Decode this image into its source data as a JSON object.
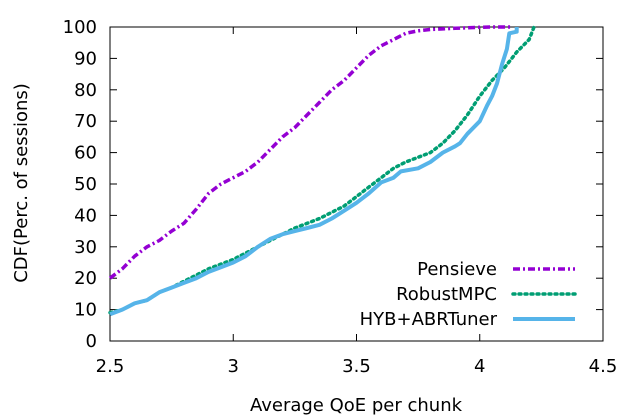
{
  "chart_data": {
    "type": "line",
    "title": "",
    "xlabel": "Average QoE per chunk",
    "ylabel": "CDF(Perc. of sessions)",
    "xlim": [
      2.5,
      4.5
    ],
    "ylim": [
      0,
      100
    ],
    "xticks": [
      2.5,
      3,
      3.5,
      4,
      4.5
    ],
    "xtick_labels": [
      "2.5",
      "3",
      "3.5",
      "4",
      "4.5"
    ],
    "yticks": [
      0,
      10,
      20,
      30,
      40,
      50,
      60,
      70,
      80,
      90,
      100
    ],
    "ytick_labels": [
      "0",
      "10",
      "20",
      "30",
      "40",
      "50",
      "60",
      "70",
      "80",
      "90",
      "100"
    ],
    "grid": false,
    "legend_position": "bottom-right",
    "series": [
      {
        "name": "Pensieve",
        "color": "#9400d3",
        "style": "dash-dot",
        "points": [
          [
            2.5,
            20
          ],
          [
            2.55,
            23
          ],
          [
            2.6,
            27
          ],
          [
            2.65,
            30
          ],
          [
            2.7,
            32
          ],
          [
            2.75,
            35
          ],
          [
            2.8,
            37.5
          ],
          [
            2.85,
            42
          ],
          [
            2.9,
            47
          ],
          [
            2.95,
            50
          ],
          [
            3.0,
            52
          ],
          [
            3.05,
            54
          ],
          [
            3.1,
            57
          ],
          [
            3.15,
            61
          ],
          [
            3.2,
            65
          ],
          [
            3.25,
            68
          ],
          [
            3.3,
            72
          ],
          [
            3.35,
            76
          ],
          [
            3.4,
            80
          ],
          [
            3.45,
            83
          ],
          [
            3.5,
            87
          ],
          [
            3.55,
            91
          ],
          [
            3.6,
            94
          ],
          [
            3.65,
            96
          ],
          [
            3.7,
            98
          ],
          [
            3.75,
            98.8
          ],
          [
            3.8,
            99.2
          ],
          [
            3.9,
            99.6
          ],
          [
            4.0,
            99.9
          ],
          [
            4.05,
            100
          ],
          [
            4.13,
            100
          ]
        ]
      },
      {
        "name": "RobustMPC",
        "color": "#009e73",
        "style": "dotted",
        "points": [
          [
            2.5,
            9
          ],
          [
            2.55,
            10
          ],
          [
            2.6,
            12
          ],
          [
            2.65,
            13
          ],
          [
            2.7,
            15.5
          ],
          [
            2.75,
            17
          ],
          [
            2.8,
            19
          ],
          [
            2.85,
            21
          ],
          [
            2.9,
            23
          ],
          [
            2.95,
            24.5
          ],
          [
            3.0,
            26
          ],
          [
            3.05,
            28
          ],
          [
            3.1,
            30
          ],
          [
            3.15,
            32
          ],
          [
            3.2,
            34
          ],
          [
            3.25,
            36
          ],
          [
            3.3,
            37.5
          ],
          [
            3.35,
            39
          ],
          [
            3.4,
            41
          ],
          [
            3.45,
            43
          ],
          [
            3.5,
            46
          ],
          [
            3.55,
            49
          ],
          [
            3.6,
            52
          ],
          [
            3.65,
            55
          ],
          [
            3.7,
            57
          ],
          [
            3.75,
            58.5
          ],
          [
            3.8,
            60
          ],
          [
            3.85,
            63
          ],
          [
            3.9,
            67
          ],
          [
            3.95,
            72
          ],
          [
            4.0,
            78
          ],
          [
            4.05,
            83
          ],
          [
            4.1,
            87
          ],
          [
            4.15,
            92
          ],
          [
            4.2,
            96
          ],
          [
            4.22,
            100
          ]
        ]
      },
      {
        "name": "HYB+ABRTuner",
        "color": "#56b4e9",
        "style": "solid",
        "points": [
          [
            2.5,
            8.5
          ],
          [
            2.55,
            10
          ],
          [
            2.6,
            12
          ],
          [
            2.65,
            13
          ],
          [
            2.7,
            15.5
          ],
          [
            2.75,
            17
          ],
          [
            2.8,
            18.5
          ],
          [
            2.85,
            20
          ],
          [
            2.9,
            22
          ],
          [
            2.95,
            23.5
          ],
          [
            3.0,
            25
          ],
          [
            3.05,
            27
          ],
          [
            3.1,
            30
          ],
          [
            3.15,
            32.5
          ],
          [
            3.2,
            34
          ],
          [
            3.25,
            35
          ],
          [
            3.3,
            36
          ],
          [
            3.35,
            37
          ],
          [
            3.4,
            39
          ],
          [
            3.45,
            41.5
          ],
          [
            3.5,
            44
          ],
          [
            3.55,
            47
          ],
          [
            3.6,
            50.5
          ],
          [
            3.65,
            52
          ],
          [
            3.68,
            54
          ],
          [
            3.75,
            55
          ],
          [
            3.8,
            57
          ],
          [
            3.85,
            60
          ],
          [
            3.9,
            62
          ],
          [
            3.92,
            63
          ],
          [
            3.95,
            66
          ],
          [
            4.0,
            70
          ],
          [
            4.03,
            75
          ],
          [
            4.05,
            78
          ],
          [
            4.07,
            82
          ],
          [
            4.09,
            88
          ],
          [
            4.11,
            93
          ],
          [
            4.12,
            98
          ],
          [
            4.15,
            98.5
          ],
          [
            4.15,
            100
          ]
        ]
      }
    ]
  }
}
